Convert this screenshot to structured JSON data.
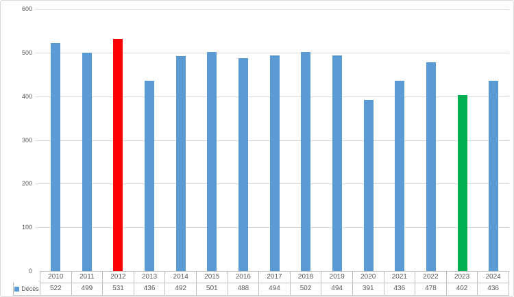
{
  "chart_data": {
    "type": "bar",
    "categories": [
      "2010",
      "2011",
      "2012",
      "2013",
      "2014",
      "2015",
      "2016",
      "2017",
      "2018",
      "2019",
      "2020",
      "2021",
      "2022",
      "2023",
      "2024"
    ],
    "series": [
      {
        "name": "Décès",
        "values": [
          522,
          499,
          531,
          436,
          492,
          501,
          488,
          494,
          502,
          494,
          391,
          436,
          478,
          402,
          436
        ]
      }
    ],
    "bar_colors": [
      "#5B9BD5",
      "#5B9BD5",
      "#FF0000",
      "#5B9BD5",
      "#5B9BD5",
      "#5B9BD5",
      "#5B9BD5",
      "#5B9BD5",
      "#5B9BD5",
      "#5B9BD5",
      "#5B9BD5",
      "#5B9BD5",
      "#5B9BD5",
      "#00B050",
      "#5B9BD5"
    ],
    "ylim": [
      0,
      600
    ],
    "yticks": [
      0,
      100,
      200,
      300,
      400,
      500,
      600
    ],
    "grid": true,
    "legend_position": "data-table-left",
    "has_data_table": true
  },
  "colors": {
    "default_bar": "#5B9BD5",
    "highlight_2012": "#FF0000",
    "highlight_2023": "#00B050",
    "gridline": "#D9D9D9",
    "chart_border": "#D9D9D9",
    "table_border": "#BFBFBF",
    "text": "#595959"
  }
}
